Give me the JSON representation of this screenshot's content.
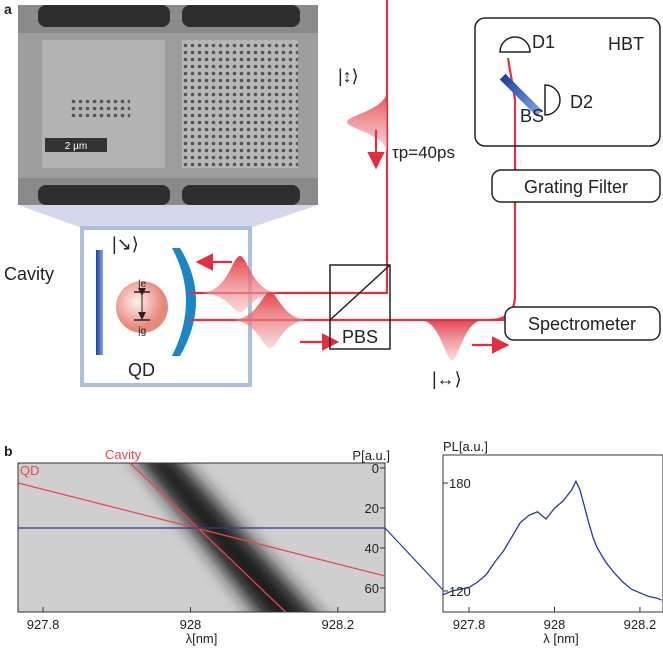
{
  "panel_a": {
    "label": "a",
    "scale_bar": "2 µm",
    "input_polarization": "|↕⟩",
    "pulse_width": "τp=40ps",
    "hbt": "HBT",
    "d1": "D1",
    "d2": "D2",
    "bs": "BS",
    "grating_filter": "Grating Filter",
    "spectrometer": "Spectrometer",
    "pbs": "PBS",
    "cavity": "Cavity",
    "qd": "QD",
    "excited_state": "|e",
    "ground_state": "|g",
    "cavity_polarization": "|↘⟩",
    "output_polarization": "|↔⟩"
  },
  "panel_b": {
    "label": "b",
    "map": {
      "type": "image-map",
      "xlabel": "λ[nm]",
      "ylabel": "P[a.u.]",
      "xlim": [
        927.766,
        928.264
      ],
      "xticks": [
        927.8,
        928,
        928.2
      ],
      "ylim": [
        -2.5,
        72
      ],
      "yticks": [
        0,
        20,
        40,
        60
      ],
      "lines": [
        {
          "name": "QD",
          "color": "#e8474c",
          "x": [
            927.766,
            928.264
          ],
          "values": [
            7.5,
            54
          ]
        },
        {
          "name": "Cavity",
          "color": "#e8474c",
          "x": [
            927.918,
            928.129
          ],
          "values": [
            -2.5,
            72
          ]
        }
      ],
      "cut": {
        "color": "#2a3a9a",
        "value": 30
      }
    },
    "spectrum": {
      "type": "line",
      "xlabel": "λ [nm]",
      "ylabel": "PL[a.u.]",
      "xlim": [
        927.739,
        928.254
      ],
      "xticks": [
        927.8,
        928,
        928.2
      ],
      "ylim": [
        108.3,
        195.6
      ],
      "yticks": [
        120,
        180
      ],
      "color": "#2a3a9a",
      "x": [
        927.74,
        927.76,
        927.78,
        927.8,
        927.82,
        927.84,
        927.86,
        927.88,
        927.9,
        927.92,
        927.94,
        927.96,
        927.98,
        928.0,
        928.02,
        928.04,
        928.05,
        928.06,
        928.07,
        928.08,
        928.09,
        928.1,
        928.12,
        928.14,
        928.16,
        928.18,
        928.2,
        928.22,
        928.24,
        928.25
      ],
      "values": [
        118,
        120,
        121,
        122,
        125,
        129,
        136,
        142,
        150,
        158,
        162,
        164,
        160,
        166,
        170,
        176,
        181,
        176,
        167,
        158,
        150,
        144,
        136,
        130,
        125,
        121,
        119,
        117,
        116,
        115
      ]
    }
  }
}
